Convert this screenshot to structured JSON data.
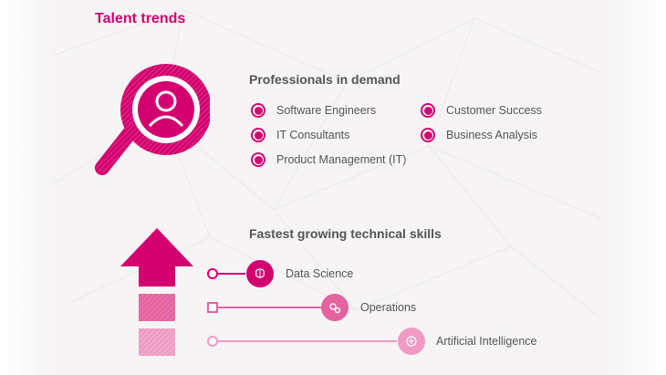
{
  "title": "Talent trends",
  "demand": {
    "heading": "Professionals in demand",
    "items": [
      "Software Engineers",
      "IT Consultants",
      "Product Management (IT)",
      "Customer Success",
      "Business Analysis"
    ]
  },
  "skills": {
    "heading": "Fastest growing technical skills",
    "items": [
      {
        "label": "Data Science",
        "icon": "brain-icon"
      },
      {
        "label": "Operations",
        "icon": "gears-icon"
      },
      {
        "label": "Artificial Intelligence",
        "icon": "circuit-brain-icon"
      }
    ]
  },
  "colors": {
    "accent": "#d4006f",
    "accent_mid": "#e4639f",
    "accent_light": "#ef9bc4",
    "text": "#555555",
    "background": "#f6f4f4"
  }
}
